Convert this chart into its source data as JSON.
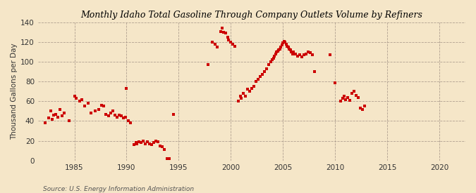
{
  "title": "Monthly Idaho Total Gasoline Through Company Outlets Volume by Refiners",
  "ylabel": "Thousand Gallons per Day",
  "source": "Source: U.S. Energy Information Administration",
  "background_color": "#f5e6c8",
  "dot_color": "#cc0000",
  "xlim": [
    1981.5,
    2022.5
  ],
  "ylim": [
    0,
    140
  ],
  "xticks": [
    1985,
    1990,
    1995,
    2000,
    2005,
    2010,
    2015,
    2020
  ],
  "yticks": [
    0,
    20,
    40,
    60,
    80,
    100,
    120,
    140
  ],
  "data_points": [
    [
      1982.2,
      38
    ],
    [
      1982.5,
      43
    ],
    [
      1982.7,
      50
    ],
    [
      1982.9,
      42
    ],
    [
      1983.0,
      46
    ],
    [
      1983.2,
      47
    ],
    [
      1983.4,
      44
    ],
    [
      1983.6,
      52
    ],
    [
      1983.8,
      45
    ],
    [
      1984.0,
      48
    ],
    [
      1984.5,
      40
    ],
    [
      1985.0,
      65
    ],
    [
      1985.2,
      63
    ],
    [
      1985.5,
      60
    ],
    [
      1985.7,
      62
    ],
    [
      1986.0,
      55
    ],
    [
      1986.3,
      58
    ],
    [
      1986.6,
      48
    ],
    [
      1987.0,
      50
    ],
    [
      1987.3,
      52
    ],
    [
      1987.6,
      56
    ],
    [
      1987.8,
      55
    ],
    [
      1988.0,
      47
    ],
    [
      1988.3,
      45
    ],
    [
      1988.5,
      48
    ],
    [
      1988.7,
      50
    ],
    [
      1988.9,
      46
    ],
    [
      1989.1,
      44
    ],
    [
      1989.3,
      46
    ],
    [
      1989.5,
      45
    ],
    [
      1989.7,
      43
    ],
    [
      1989.9,
      44
    ],
    [
      1990.0,
      73
    ],
    [
      1990.2,
      40
    ],
    [
      1990.4,
      38
    ],
    [
      1990.7,
      16
    ],
    [
      1990.9,
      18
    ],
    [
      1991.0,
      17
    ],
    [
      1991.2,
      19
    ],
    [
      1991.4,
      18
    ],
    [
      1991.6,
      20
    ],
    [
      1991.8,
      17
    ],
    [
      1992.0,
      19
    ],
    [
      1992.2,
      17
    ],
    [
      1992.4,
      16
    ],
    [
      1992.6,
      18
    ],
    [
      1992.8,
      20
    ],
    [
      1993.0,
      19
    ],
    [
      1993.2,
      15
    ],
    [
      1993.4,
      14
    ],
    [
      1993.6,
      11
    ],
    [
      1993.9,
      2
    ],
    [
      1994.1,
      2
    ],
    [
      1994.5,
      47
    ],
    [
      1997.8,
      97
    ],
    [
      1998.2,
      120
    ],
    [
      1998.5,
      118
    ],
    [
      1998.7,
      115
    ],
    [
      1999.0,
      131
    ],
    [
      1999.2,
      134
    ],
    [
      1999.3,
      130
    ],
    [
      1999.5,
      129
    ],
    [
      1999.7,
      125
    ],
    [
      1999.8,
      122
    ],
    [
      2000.0,
      120
    ],
    [
      2000.2,
      118
    ],
    [
      2000.4,
      116
    ],
    [
      2000.7,
      60
    ],
    [
      2000.9,
      65
    ],
    [
      2001.0,
      63
    ],
    [
      2001.2,
      68
    ],
    [
      2001.4,
      65
    ],
    [
      2001.6,
      72
    ],
    [
      2001.8,
      70
    ],
    [
      2002.0,
      73
    ],
    [
      2002.2,
      75
    ],
    [
      2002.4,
      80
    ],
    [
      2002.6,
      82
    ],
    [
      2002.8,
      85
    ],
    [
      2003.0,
      87
    ],
    [
      2003.2,
      90
    ],
    [
      2003.4,
      93
    ],
    [
      2003.6,
      97
    ],
    [
      2003.8,
      100
    ],
    [
      2004.0,
      102
    ],
    [
      2004.1,
      104
    ],
    [
      2004.2,
      106
    ],
    [
      2004.3,
      108
    ],
    [
      2004.4,
      110
    ],
    [
      2004.5,
      111
    ],
    [
      2004.6,
      112
    ],
    [
      2004.7,
      113
    ],
    [
      2004.8,
      115
    ],
    [
      2004.9,
      117
    ],
    [
      2005.0,
      119
    ],
    [
      2005.1,
      121
    ],
    [
      2005.2,
      120
    ],
    [
      2005.3,
      118
    ],
    [
      2005.4,
      116
    ],
    [
      2005.5,
      115
    ],
    [
      2005.6,
      113
    ],
    [
      2005.7,
      112
    ],
    [
      2005.8,
      110
    ],
    [
      2005.9,
      108
    ],
    [
      2006.0,
      110
    ],
    [
      2006.2,
      108
    ],
    [
      2006.4,
      106
    ],
    [
      2006.6,
      107
    ],
    [
      2006.8,
      105
    ],
    [
      2007.0,
      107
    ],
    [
      2007.2,
      108
    ],
    [
      2007.4,
      110
    ],
    [
      2007.6,
      109
    ],
    [
      2007.8,
      107
    ],
    [
      2008.0,
      90
    ],
    [
      2009.5,
      107
    ],
    [
      2010.0,
      79
    ],
    [
      2010.5,
      60
    ],
    [
      2010.7,
      63
    ],
    [
      2010.9,
      65
    ],
    [
      2011.0,
      62
    ],
    [
      2011.2,
      64
    ],
    [
      2011.4,
      61
    ],
    [
      2011.6,
      68
    ],
    [
      2011.8,
      70
    ],
    [
      2012.0,
      66
    ],
    [
      2012.2,
      64
    ],
    [
      2012.4,
      53
    ],
    [
      2012.6,
      52
    ],
    [
      2012.8,
      55
    ]
  ]
}
